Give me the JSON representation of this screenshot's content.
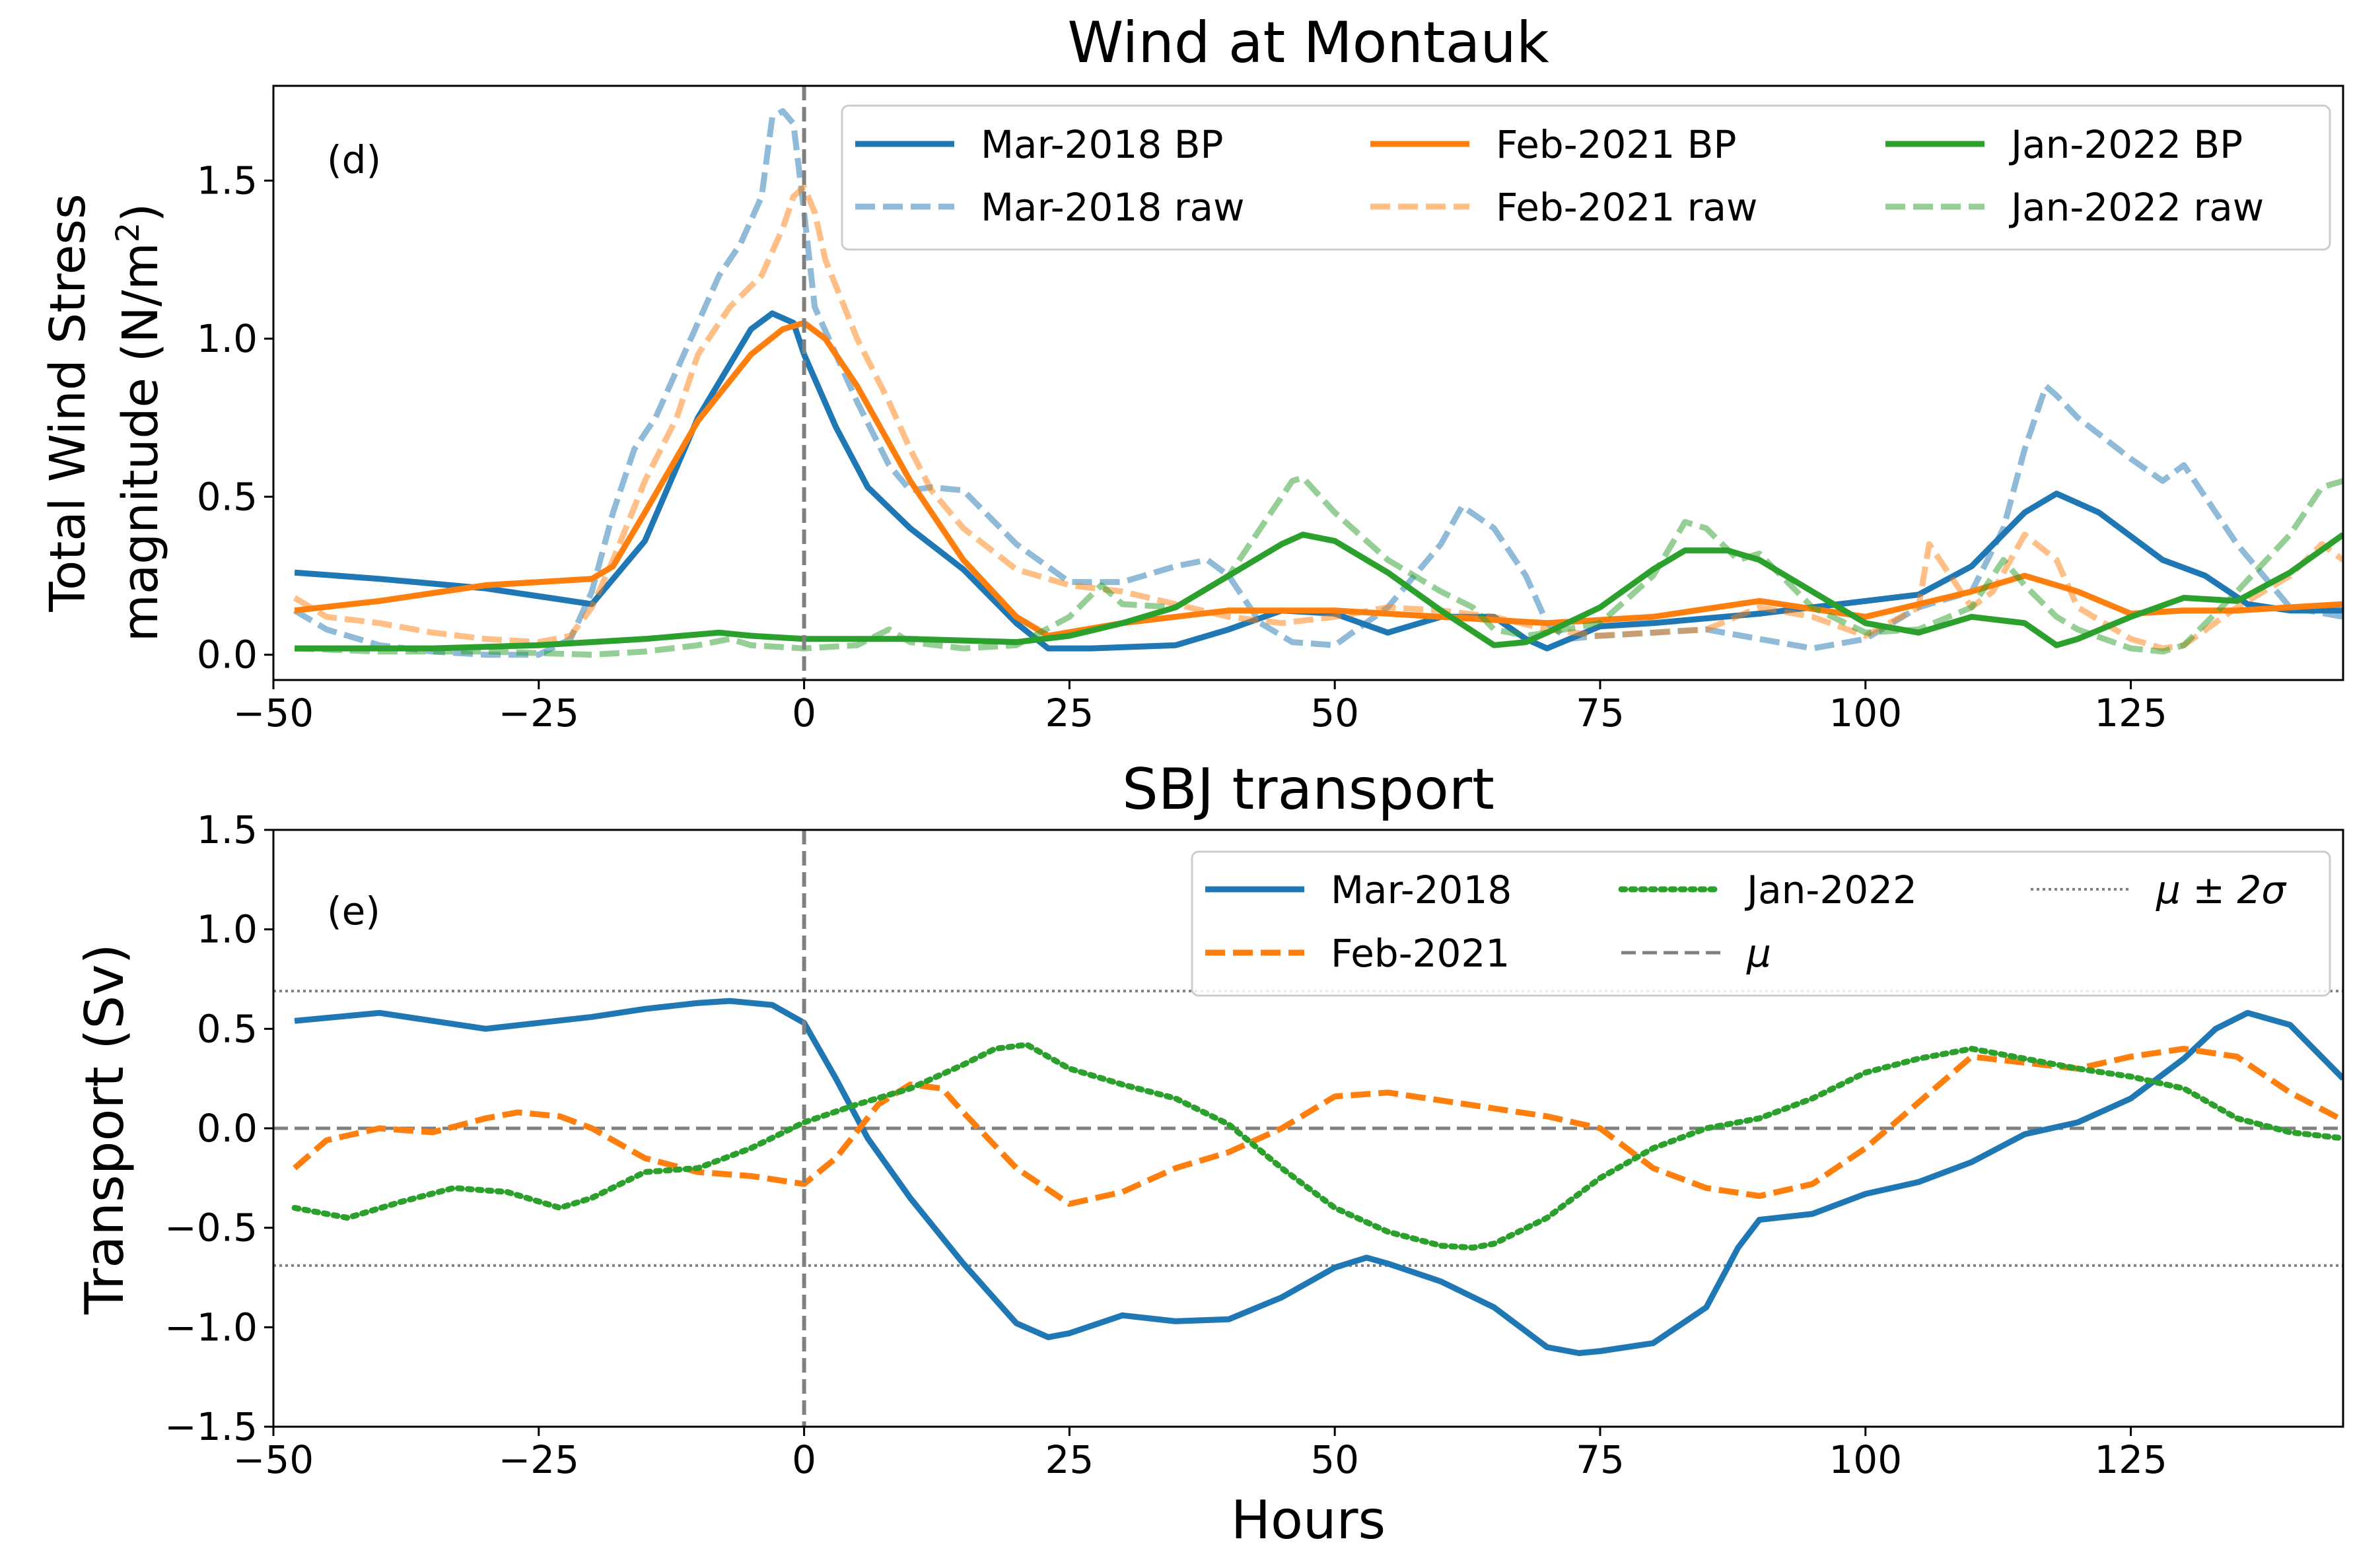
{
  "chart_data": [
    {
      "panel_label": "(d)",
      "type": "line",
      "title": "Wind at Montauk",
      "xlabel": "",
      "ylabel_line1": "Total Wind Stress",
      "ylabel_line2": "magnitude (N/m",
      "ylabel_sup": "2",
      "ylabel_close": ")",
      "xlim": [
        -50,
        145
      ],
      "ylim": [
        -0.08,
        1.8
      ],
      "xticks": [
        -50,
        -25,
        0,
        25,
        50,
        75,
        100,
        125
      ],
      "xtick_labels": [
        "−50",
        "−25",
        "0",
        "25",
        "50",
        "75",
        "100",
        "125"
      ],
      "yticks": [
        0.0,
        0.5,
        1.0,
        1.5
      ],
      "ytick_labels": [
        "0.0",
        "0.5",
        "1.0",
        "1.5"
      ],
      "vline_x": 0,
      "legend_position": "top-right",
      "legend_columns": 3,
      "series": [
        {
          "name": "Mar-2018 BP",
          "color": "#1f77b4",
          "style": "solid",
          "opacity": 1,
          "x": [
            -48,
            -40,
            -30,
            -24,
            -20,
            -15,
            -10,
            -5,
            -3,
            -1,
            0,
            3,
            6,
            10,
            15,
            20,
            23,
            27,
            35,
            40,
            45,
            50,
            55,
            60,
            65,
            68,
            70,
            75,
            80,
            90,
            100,
            105,
            110,
            115,
            118,
            122,
            128,
            132,
            136,
            140,
            145
          ],
          "y": [
            0.26,
            0.24,
            0.21,
            0.18,
            0.16,
            0.36,
            0.75,
            1.03,
            1.08,
            1.05,
            0.95,
            0.72,
            0.53,
            0.4,
            0.27,
            0.1,
            0.02,
            0.02,
            0.03,
            0.08,
            0.14,
            0.13,
            0.07,
            0.12,
            0.12,
            0.05,
            0.02,
            0.09,
            0.1,
            0.13,
            0.17,
            0.19,
            0.28,
            0.45,
            0.51,
            0.45,
            0.3,
            0.25,
            0.16,
            0.14,
            0.14
          ]
        },
        {
          "name": "Mar-2018 raw",
          "color": "#1f77b4",
          "style": "dashed",
          "opacity": 0.5,
          "x": [
            -48,
            -45,
            -40,
            -35,
            -30,
            -25,
            -22,
            -20,
            -18,
            -16,
            -14,
            -12,
            -10,
            -8,
            -6,
            -4,
            -3,
            -2,
            -1,
            0,
            1,
            3,
            5,
            8,
            10,
            12,
            15,
            20,
            25,
            30,
            35,
            38,
            40,
            43,
            46,
            50,
            55,
            60,
            62,
            65,
            68,
            70,
            72,
            75,
            80,
            85,
            90,
            95,
            100,
            105,
            110,
            113,
            115,
            117,
            118,
            120,
            125,
            128,
            130,
            132,
            135,
            140,
            145
          ],
          "y": [
            0.14,
            0.08,
            0.03,
            0.01,
            0.0,
            0.0,
            0.05,
            0.2,
            0.45,
            0.65,
            0.75,
            0.9,
            1.05,
            1.2,
            1.3,
            1.45,
            1.7,
            1.72,
            1.68,
            1.4,
            1.1,
            0.95,
            0.8,
            0.6,
            0.52,
            0.53,
            0.52,
            0.35,
            0.23,
            0.23,
            0.28,
            0.3,
            0.25,
            0.1,
            0.04,
            0.03,
            0.15,
            0.35,
            0.47,
            0.4,
            0.25,
            0.1,
            0.05,
            0.06,
            0.07,
            0.08,
            0.05,
            0.02,
            0.05,
            0.15,
            0.2,
            0.4,
            0.65,
            0.85,
            0.82,
            0.75,
            0.62,
            0.55,
            0.6,
            0.5,
            0.35,
            0.15,
            0.12
          ]
        },
        {
          "name": "Feb-2021 BP",
          "color": "#ff7f0e",
          "style": "solid",
          "opacity": 1,
          "x": [
            -48,
            -40,
            -30,
            -25,
            -20,
            -18,
            -15,
            -10,
            -5,
            -2,
            0,
            2,
            5,
            10,
            15,
            20,
            23,
            30,
            40,
            50,
            60,
            70,
            80,
            90,
            100,
            110,
            115,
            120,
            125,
            130,
            135,
            140,
            145
          ],
          "y": [
            0.14,
            0.17,
            0.22,
            0.23,
            0.24,
            0.28,
            0.45,
            0.74,
            0.95,
            1.03,
            1.05,
            1.0,
            0.85,
            0.55,
            0.3,
            0.12,
            0.06,
            0.1,
            0.14,
            0.14,
            0.12,
            0.1,
            0.12,
            0.17,
            0.12,
            0.2,
            0.25,
            0.2,
            0.13,
            0.14,
            0.14,
            0.15,
            0.16
          ]
        },
        {
          "name": "Feb-2021 raw",
          "color": "#ff7f0e",
          "style": "dashed",
          "opacity": 0.5,
          "x": [
            -48,
            -45,
            -40,
            -35,
            -30,
            -25,
            -22,
            -20,
            -18,
            -15,
            -12,
            -10,
            -7,
            -4,
            -2,
            -1,
            0,
            1,
            2,
            5,
            8,
            10,
            12,
            15,
            20,
            25,
            30,
            35,
            40,
            45,
            50,
            55,
            60,
            65,
            70,
            75,
            80,
            85,
            90,
            95,
            100,
            105,
            106,
            108,
            110,
            112,
            115,
            118,
            120,
            125,
            128,
            130,
            135,
            140,
            143,
            145
          ],
          "y": [
            0.18,
            0.12,
            0.1,
            0.07,
            0.05,
            0.04,
            0.06,
            0.15,
            0.3,
            0.55,
            0.75,
            0.95,
            1.1,
            1.2,
            1.35,
            1.45,
            1.48,
            1.4,
            1.25,
            1.0,
            0.8,
            0.65,
            0.52,
            0.4,
            0.27,
            0.22,
            0.2,
            0.16,
            0.12,
            0.1,
            0.12,
            0.15,
            0.14,
            0.12,
            0.08,
            0.06,
            0.07,
            0.08,
            0.15,
            0.12,
            0.06,
            0.15,
            0.35,
            0.25,
            0.15,
            0.2,
            0.38,
            0.3,
            0.15,
            0.05,
            0.02,
            0.03,
            0.15,
            0.25,
            0.35,
            0.3
          ]
        },
        {
          "name": "Jan-2022 BP",
          "color": "#2ca02c",
          "style": "solid",
          "opacity": 1,
          "x": [
            -48,
            -35,
            -25,
            -15,
            -8,
            -5,
            0,
            10,
            20,
            25,
            30,
            35,
            40,
            45,
            47,
            50,
            55,
            60,
            65,
            68,
            70,
            75,
            80,
            83,
            87,
            90,
            95,
            100,
            105,
            110,
            115,
            118,
            120,
            125,
            130,
            135,
            140,
            145
          ],
          "y": [
            0.02,
            0.02,
            0.03,
            0.05,
            0.07,
            0.06,
            0.05,
            0.05,
            0.04,
            0.06,
            0.1,
            0.15,
            0.25,
            0.35,
            0.38,
            0.36,
            0.26,
            0.14,
            0.03,
            0.04,
            0.07,
            0.15,
            0.27,
            0.33,
            0.33,
            0.3,
            0.2,
            0.1,
            0.07,
            0.12,
            0.1,
            0.03,
            0.05,
            0.12,
            0.18,
            0.17,
            0.26,
            0.38
          ]
        },
        {
          "name": "Jan-2022 raw",
          "color": "#2ca02c",
          "style": "dashed",
          "opacity": 0.5,
          "x": [
            -48,
            -40,
            -30,
            -20,
            -15,
            -10,
            -7,
            -5,
            0,
            5,
            8,
            10,
            15,
            20,
            25,
            28,
            30,
            35,
            40,
            44,
            46,
            47,
            50,
            55,
            60,
            63,
            65,
            68,
            70,
            75,
            80,
            83,
            85,
            88,
            90,
            95,
            100,
            105,
            110,
            113,
            115,
            118,
            120,
            125,
            128,
            130,
            135,
            140,
            143,
            145
          ],
          "y": [
            0.02,
            0.01,
            0.01,
            0.0,
            0.01,
            0.03,
            0.05,
            0.03,
            0.02,
            0.03,
            0.08,
            0.04,
            0.02,
            0.03,
            0.12,
            0.22,
            0.16,
            0.15,
            0.25,
            0.45,
            0.55,
            0.56,
            0.45,
            0.3,
            0.2,
            0.15,
            0.08,
            0.06,
            0.07,
            0.1,
            0.25,
            0.42,
            0.4,
            0.3,
            0.32,
            0.15,
            0.07,
            0.08,
            0.15,
            0.3,
            0.22,
            0.12,
            0.08,
            0.02,
            0.01,
            0.03,
            0.2,
            0.38,
            0.53,
            0.55
          ]
        }
      ]
    },
    {
      "panel_label": "(e)",
      "type": "line",
      "title": "SBJ transport",
      "xlabel": "Hours",
      "ylabel": "Transport (Sv)",
      "xlim": [
        -50,
        145
      ],
      "ylim": [
        -1.5,
        1.5
      ],
      "xticks": [
        -50,
        -25,
        0,
        25,
        50,
        75,
        100,
        125
      ],
      "xtick_labels": [
        "−50",
        "−25",
        "0",
        "25",
        "50",
        "75",
        "100",
        "125"
      ],
      "yticks": [
        -1.5,
        -1.0,
        -0.5,
        0.0,
        0.5,
        1.0,
        1.5
      ],
      "ytick_labels": [
        "−1.5",
        "−1.0",
        "−0.5",
        "0.0",
        "0.5",
        "1.0",
        "1.5"
      ],
      "vline_x": 0,
      "mean_line": 0.0,
      "band_lines": [
        0.69,
        -0.69
      ],
      "legend_position": "top-right",
      "legend_columns": 3,
      "legend_order": [
        "Mar-2018",
        "Feb-2021",
        "Jan-2022",
        "μ",
        "μ ± 2σ"
      ],
      "mu_label": "μ",
      "band_label": "μ ± 2σ",
      "series": [
        {
          "name": "Mar-2018",
          "color": "#1f77b4",
          "style": "solid",
          "x": [
            -48,
            -40,
            -30,
            -25,
            -20,
            -15,
            -10,
            -7,
            -3,
            0,
            3,
            6,
            10,
            15,
            20,
            23,
            25,
            30,
            35,
            40,
            45,
            50,
            53,
            55,
            60,
            65,
            70,
            73,
            75,
            80,
            85,
            88,
            90,
            95,
            100,
            105,
            110,
            115,
            120,
            125,
            130,
            133,
            136,
            140,
            145
          ],
          "y": [
            0.54,
            0.58,
            0.5,
            0.53,
            0.56,
            0.6,
            0.63,
            0.64,
            0.62,
            0.53,
            0.25,
            -0.05,
            -0.35,
            -0.68,
            -0.98,
            -1.05,
            -1.03,
            -0.94,
            -0.97,
            -0.96,
            -0.85,
            -0.7,
            -0.65,
            -0.68,
            -0.77,
            -0.9,
            -1.1,
            -1.13,
            -1.12,
            -1.08,
            -0.9,
            -0.6,
            -0.46,
            -0.43,
            -0.33,
            -0.27,
            -0.17,
            -0.03,
            0.03,
            0.15,
            0.35,
            0.5,
            0.58,
            0.52,
            0.25
          ]
        },
        {
          "name": "Feb-2021",
          "color": "#ff7f0e",
          "style": "dashed",
          "x": [
            -48,
            -45,
            -40,
            -35,
            -30,
            -27,
            -23,
            -20,
            -15,
            -10,
            -5,
            0,
            3,
            7,
            10,
            13,
            15,
            20,
            25,
            30,
            35,
            40,
            45,
            50,
            55,
            60,
            65,
            70,
            75,
            80,
            85,
            90,
            95,
            100,
            105,
            110,
            115,
            120,
            125,
            130,
            135,
            140,
            145
          ],
          "y": [
            -0.2,
            -0.06,
            0.0,
            -0.02,
            0.05,
            0.08,
            0.06,
            0.0,
            -0.15,
            -0.22,
            -0.24,
            -0.28,
            -0.15,
            0.12,
            0.22,
            0.2,
            0.08,
            -0.2,
            -0.38,
            -0.32,
            -0.2,
            -0.12,
            0.0,
            0.16,
            0.18,
            0.14,
            0.1,
            0.06,
            0.0,
            -0.2,
            -0.3,
            -0.34,
            -0.28,
            -0.1,
            0.13,
            0.36,
            0.33,
            0.3,
            0.36,
            0.4,
            0.36,
            0.18,
            0.04
          ]
        },
        {
          "name": "Jan-2022",
          "color": "#2ca02c",
          "style": "dotted",
          "x": [
            -48,
            -43,
            -38,
            -33,
            -28,
            -23,
            -20,
            -15,
            -10,
            -5,
            0,
            5,
            10,
            15,
            18,
            21,
            25,
            30,
            35,
            40,
            45,
            50,
            55,
            60,
            63,
            65,
            70,
            75,
            80,
            85,
            90,
            95,
            100,
            105,
            110,
            115,
            120,
            125,
            130,
            135,
            140,
            145
          ],
          "y": [
            -0.4,
            -0.45,
            -0.37,
            -0.3,
            -0.32,
            -0.4,
            -0.35,
            -0.22,
            -0.2,
            -0.1,
            0.03,
            0.12,
            0.2,
            0.32,
            0.4,
            0.42,
            0.3,
            0.22,
            0.15,
            0.02,
            -0.2,
            -0.4,
            -0.52,
            -0.59,
            -0.6,
            -0.58,
            -0.45,
            -0.25,
            -0.1,
            0.0,
            0.05,
            0.15,
            0.28,
            0.35,
            0.4,
            0.35,
            0.3,
            0.26,
            0.2,
            0.05,
            -0.02,
            -0.05
          ]
        }
      ]
    }
  ]
}
